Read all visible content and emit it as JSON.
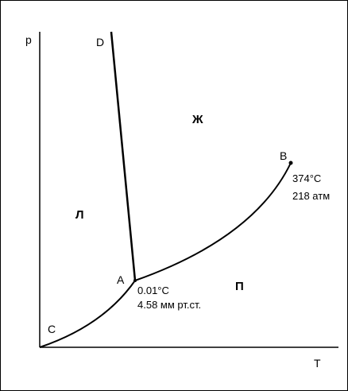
{
  "axes": {
    "y_label": "p",
    "x_label": "T"
  },
  "points": {
    "D": "D",
    "B": "B",
    "A": "A",
    "C": "C"
  },
  "regions": {
    "solid": "Л",
    "liquid": "Ж",
    "gas": "П"
  },
  "annotations": {
    "critical_temperature": "374°C",
    "critical_pressure": "218 атм",
    "triple_temperature": "0.01°C",
    "triple_pressure": "4.58 мм рт.ст."
  }
}
